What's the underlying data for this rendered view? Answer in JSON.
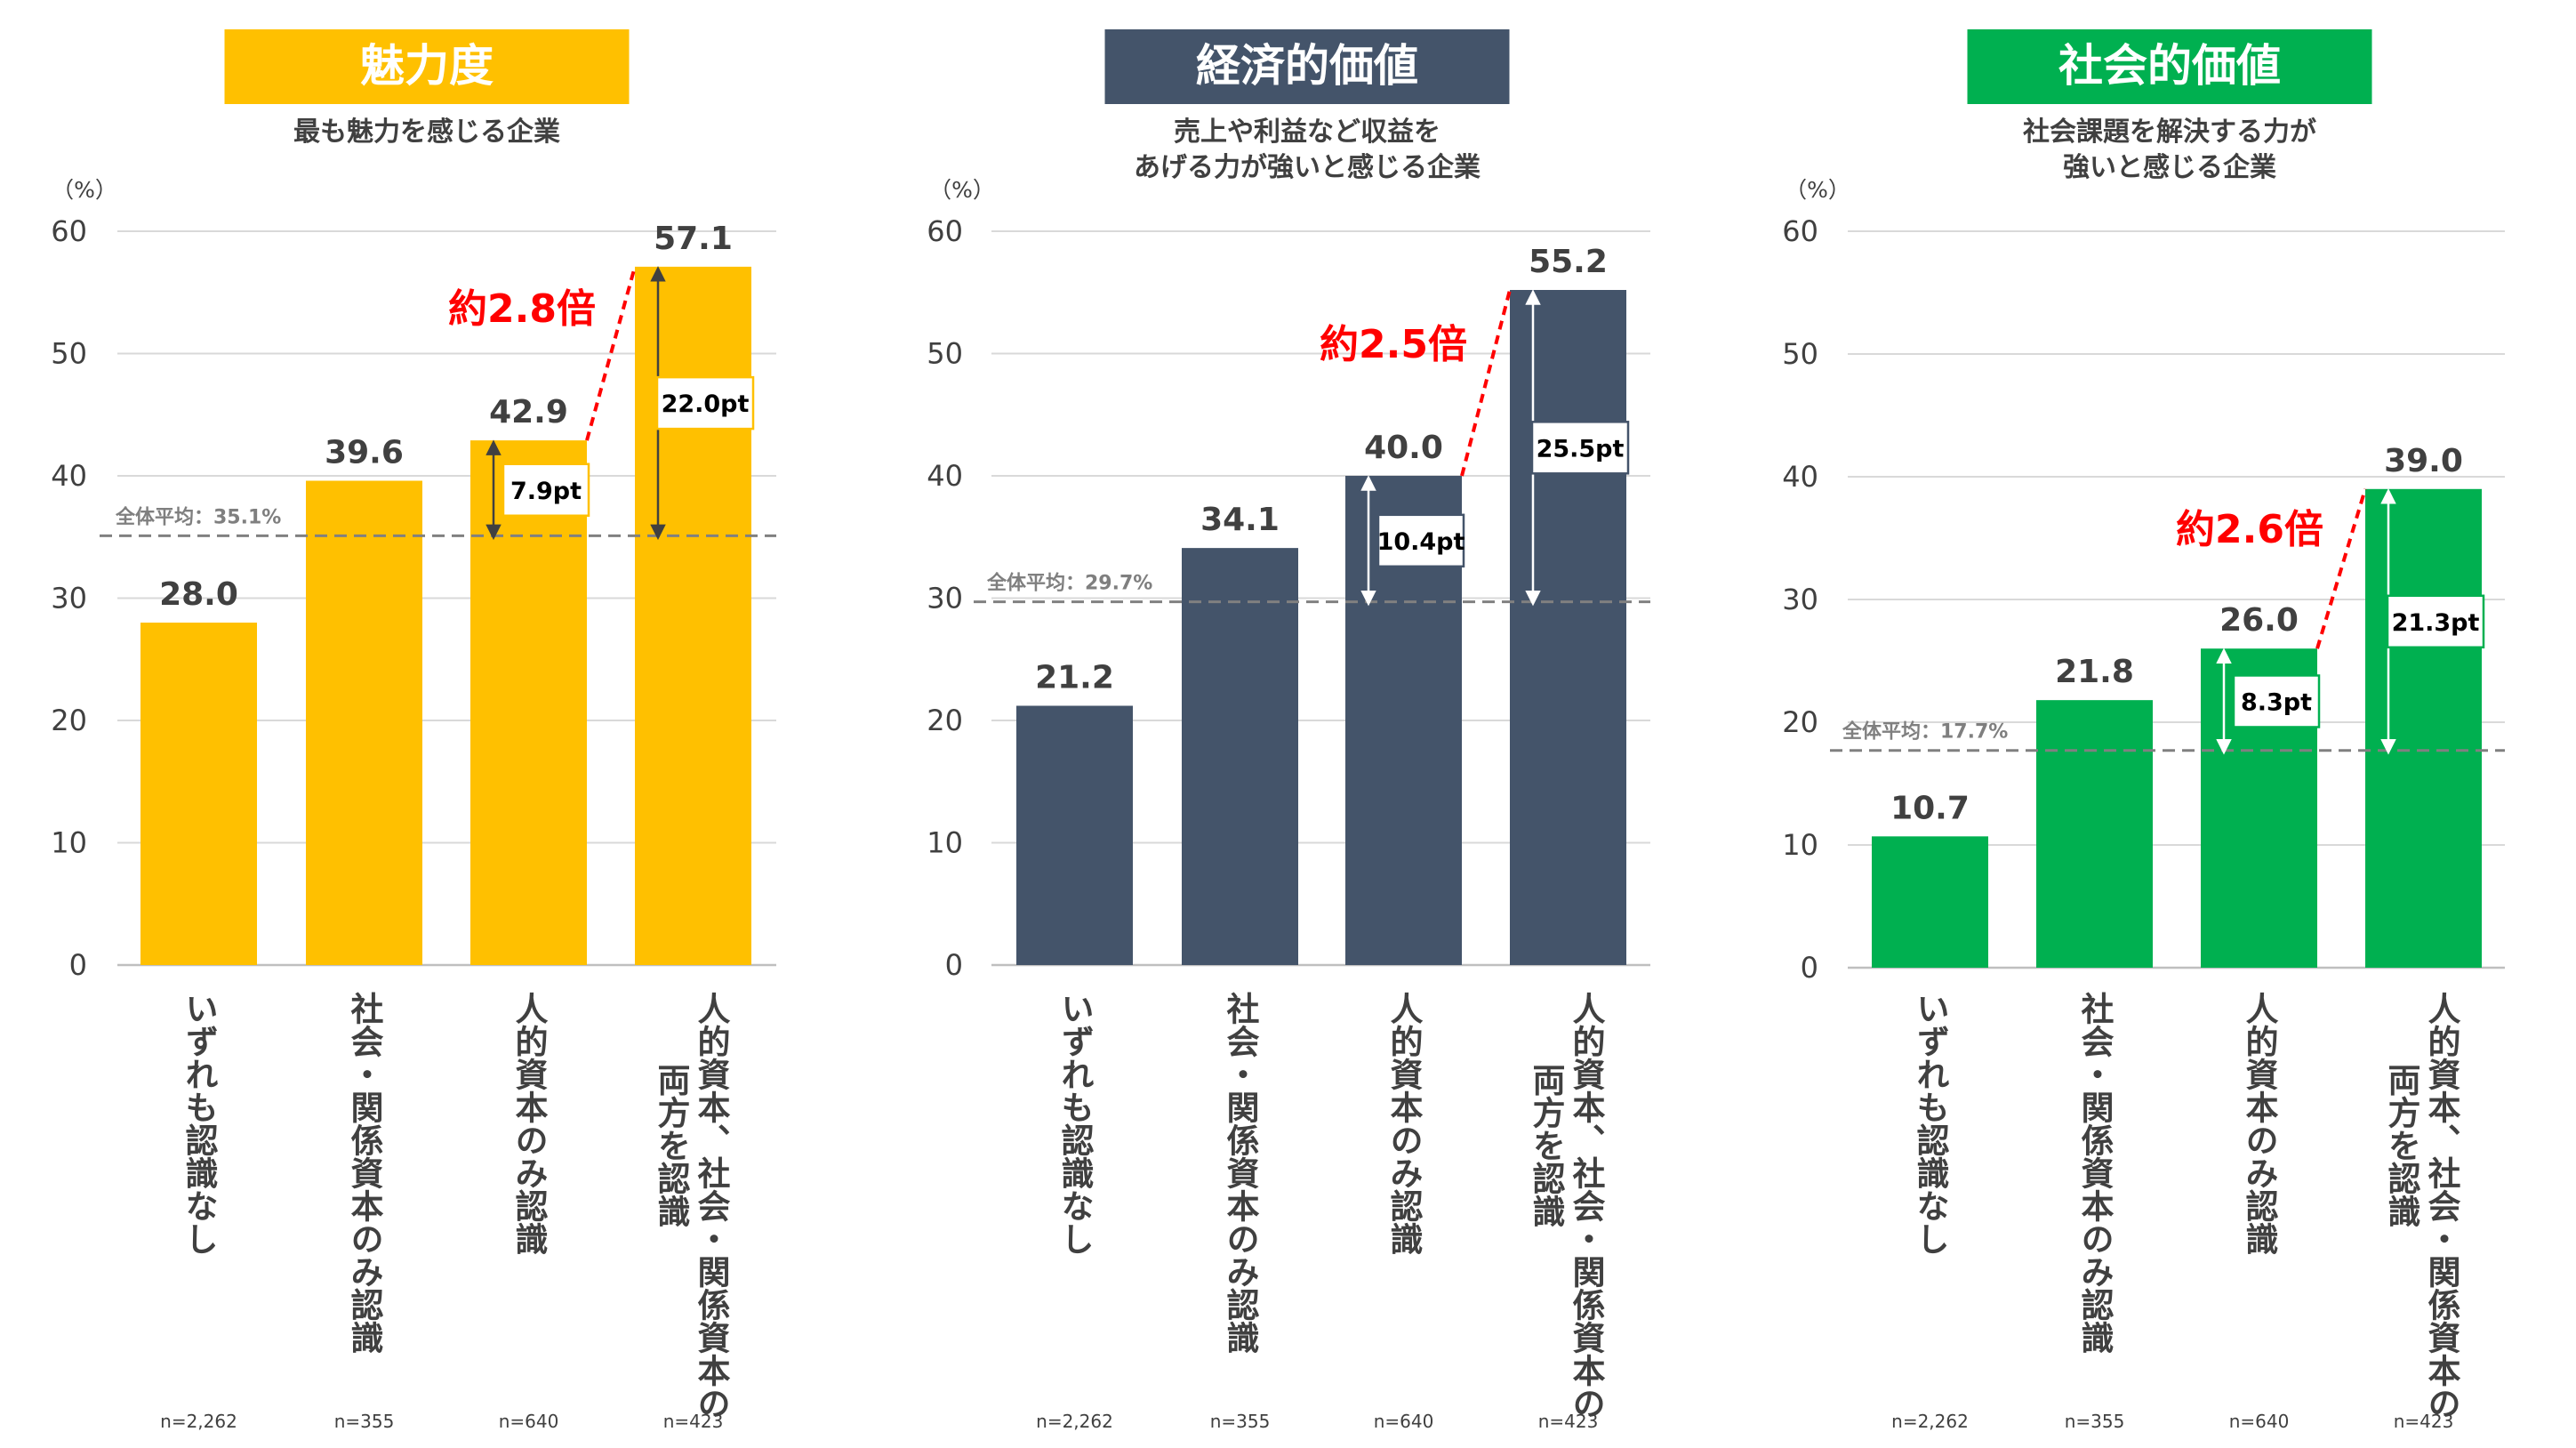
{
  "categories": [
    "いずれも認識なし",
    "社会・関係資本のみ認識",
    "人的資本のみ認識",
    "人的資本、社会・関係資本の両方を認識"
  ],
  "sample_sizes": [
    "n=2,262",
    "n=355",
    "n=640",
    "n=423"
  ],
  "chart_data": [
    {
      "type": "bar",
      "title": "魅力度",
      "subtitle": [
        "最も魅力を感じる企業"
      ],
      "ylabel": "（%）",
      "color": "#FFC000",
      "title_text_color": "#FFFFFF",
      "ylim": [
        0,
        60
      ],
      "yticks": [
        0,
        10,
        20,
        30,
        40,
        50,
        60
      ],
      "gridlines": true,
      "values": [
        28.0,
        39.6,
        42.9,
        57.1
      ],
      "value_labels": [
        "28.0",
        "39.6",
        "42.9",
        "57.1"
      ],
      "average": 35.1,
      "average_label": "全体平均：35.1%",
      "diffs": [
        {
          "bar": 2,
          "label": "7.9pt"
        },
        {
          "bar": 3,
          "label": "22.0pt"
        }
      ],
      "ratio_label": "約2.8倍",
      "arrow_color": "#404040"
    },
    {
      "type": "bar",
      "title": "経済的価値",
      "subtitle": [
        "売上や利益など収益を",
        "あげる力が強いと感じる企業"
      ],
      "ylabel": "（%）",
      "color": "#44546A",
      "title_text_color": "#FFFFFF",
      "ylim": [
        0,
        60
      ],
      "yticks": [
        0,
        10,
        20,
        30,
        40,
        50,
        60
      ],
      "gridlines": true,
      "values": [
        21.2,
        34.1,
        40.0,
        55.2
      ],
      "value_labels": [
        "21.2",
        "34.1",
        "40.0",
        "55.2"
      ],
      "average": 29.7,
      "average_label": "全体平均：29.7%",
      "diffs": [
        {
          "bar": 2,
          "label": "10.4pt"
        },
        {
          "bar": 3,
          "label": "25.5pt"
        }
      ],
      "ratio_label": "約2.5倍",
      "arrow_color": "#FFFFFF"
    },
    {
      "type": "bar",
      "title": "社会的価値",
      "subtitle": [
        "社会課題を解決する力が",
        "強いと感じる企業"
      ],
      "ylabel": "（%）",
      "color": "#00B050",
      "title_text_color": "#FFFFFF",
      "ylim": [
        0,
        60
      ],
      "yticks": [
        0,
        10,
        20,
        30,
        40,
        50,
        60
      ],
      "gridlines": true,
      "values": [
        10.7,
        21.8,
        26.0,
        39.0
      ],
      "value_labels": [
        "10.7",
        "21.8",
        "26.0",
        "39.0"
      ],
      "average": 17.7,
      "average_label": "全体平均：17.7%",
      "diffs": [
        {
          "bar": 2,
          "label": "8.3pt"
        },
        {
          "bar": 3,
          "label": "21.3pt"
        }
      ],
      "ratio_label": "約2.6倍",
      "arrow_color": "#FFFFFF"
    }
  ],
  "colors": {
    "ratio": "#FF0000",
    "text": "#404040",
    "grid": "#D9D9D9",
    "axis": "#BFBFBF",
    "average_line": "#808080"
  }
}
